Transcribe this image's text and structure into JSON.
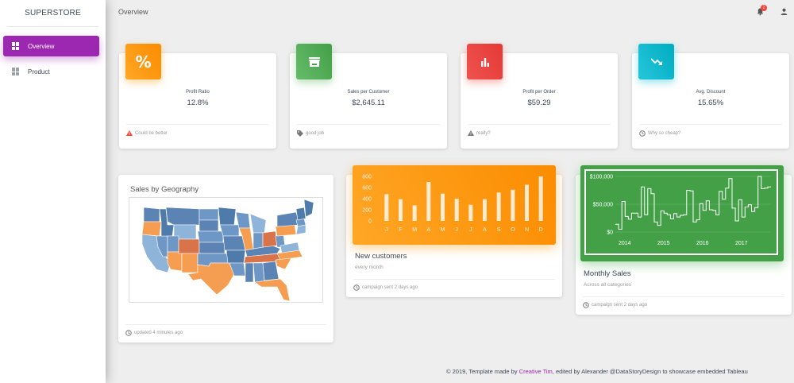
{
  "brand": "SUPERSTORE",
  "topbar": {
    "title": "Overview",
    "notifications": "2"
  },
  "sidebar": {
    "items": [
      {
        "label": "Overview",
        "active": true
      },
      {
        "label": "Product",
        "active": false
      }
    ]
  },
  "stats": [
    {
      "icon": "percent-icon",
      "color": "#ffa726",
      "label": "Profit Ratio",
      "value": "12.8%",
      "footer": "Could be better",
      "footer_icon": "warning-icon"
    },
    {
      "icon": "store-icon",
      "color": "#4caf50",
      "label": "Sales per Customer",
      "value": "$2,645.11",
      "footer": "good job",
      "footer_icon": "tag-icon"
    },
    {
      "icon": "bar-chart-icon",
      "color": "#ef5350",
      "label": "Profit per Order",
      "value": "$59.29",
      "footer": "really?",
      "footer_icon": "warning-icon"
    },
    {
      "icon": "trending-down-icon",
      "color": "#26c6da",
      "label": "Avg. Discount",
      "value": "15.65%",
      "footer": "Why so cheap?",
      "footer_icon": "clock-icon"
    }
  ],
  "map_card": {
    "title": "Sales by Geography",
    "footer": "updated 4 minutes ago"
  },
  "customers_card": {
    "title": "New customers",
    "subtitle": "every month",
    "footer": "campaign sent 2 days ago"
  },
  "monthly_card": {
    "title": "Monthly Sales",
    "subtitle": "Across all categories",
    "footer": "campaign sent 2 days ago"
  },
  "footer": {
    "prefix": "© 2019, Template made by ",
    "link": "Creative Tim",
    "suffix": ", edited by Alexander @DataStoryDesign to showcase embedded Tableau"
  },
  "chart_data": [
    {
      "type": "bar",
      "categories": [
        "J",
        "F",
        "M",
        "A",
        "M",
        "J",
        "J",
        "A",
        "S",
        "O",
        "N",
        "D"
      ],
      "values": [
        480,
        390,
        280,
        700,
        490,
        400,
        290,
        390,
        510,
        560,
        650,
        800
      ],
      "ylim": [
        0,
        800
      ],
      "yticks": [
        "800",
        "600",
        "400",
        "200",
        "0"
      ],
      "color": "#ffffff"
    },
    {
      "type": "line",
      "x": [
        "2014-01",
        "2014-02",
        "2014-03",
        "2014-04",
        "2014-05",
        "2014-06",
        "2014-07",
        "2014-08",
        "2014-09",
        "2014-10",
        "2014-11",
        "2014-12",
        "2015-01",
        "2015-02",
        "2015-03",
        "2015-04",
        "2015-05",
        "2015-06",
        "2015-07",
        "2015-08",
        "2015-09",
        "2015-10",
        "2015-11",
        "2015-12",
        "2016-01",
        "2016-02",
        "2016-03",
        "2016-04",
        "2016-05",
        "2016-06",
        "2016-07",
        "2016-08",
        "2016-09",
        "2016-10",
        "2016-11",
        "2016-12",
        "2017-01",
        "2017-02",
        "2017-03",
        "2017-04",
        "2017-05",
        "2017-06",
        "2017-07",
        "2017-08",
        "2017-09",
        "2017-10",
        "2017-11",
        "2017-12"
      ],
      "y": [
        14000,
        5000,
        55000,
        28000,
        23000,
        34000,
        34000,
        27000,
        81000,
        31000,
        78000,
        69000,
        18000,
        12000,
        38000,
        34000,
        31000,
        24000,
        33000,
        27000,
        30000,
        31000,
        75000,
        74000,
        18000,
        22000,
        51000,
        39000,
        56000,
        40000,
        39000,
        31000,
        73000,
        59000,
        79000,
        96000,
        43000,
        20000,
        58000,
        27000,
        45000,
        49000,
        37000,
        44000,
        100000,
        78000,
        79000,
        81000
      ],
      "ylim": [
        0,
        100000
      ],
      "yticks": [
        "$100,000",
        "$50,000",
        "$0"
      ],
      "xticks": [
        "2014",
        "2015",
        "2016",
        "2017"
      ],
      "color": "#ffffff"
    }
  ]
}
